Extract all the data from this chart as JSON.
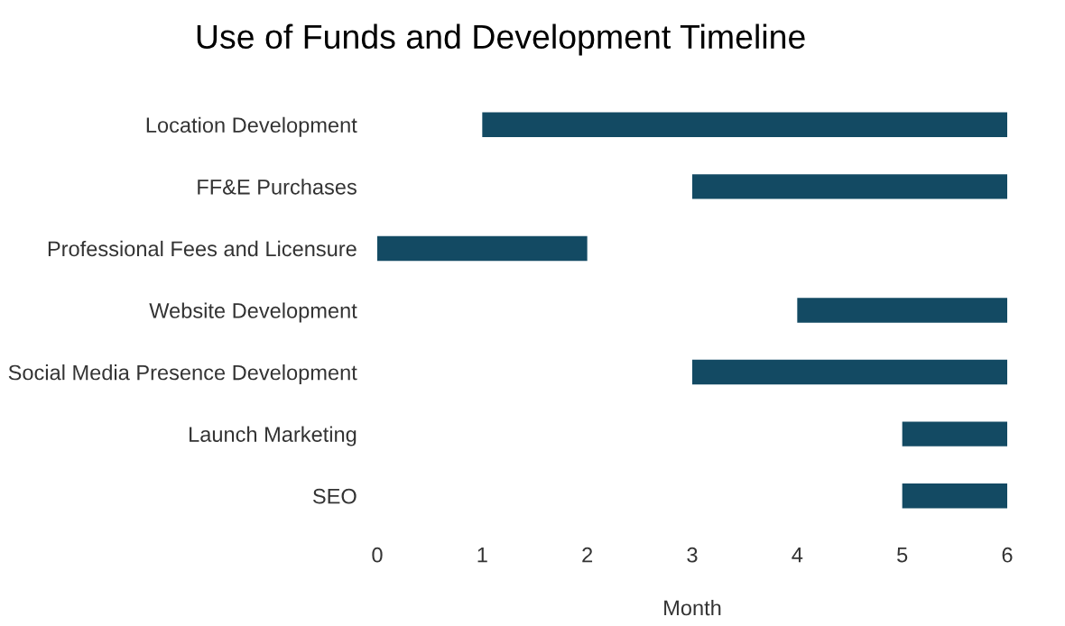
{
  "chart_data": {
    "type": "bar",
    "orientation": "horizontal",
    "title": "Use of Funds and Development Timeline",
    "xlabel": "Month",
    "categories": [
      "Location Development",
      "FF&E Purchases",
      "Professional Fees and Licensure",
      "Website Development",
      "Social Media Presence Development",
      "Launch Marketing",
      "SEO"
    ],
    "base": [
      1,
      3,
      0,
      4,
      3,
      5,
      5
    ],
    "values": [
      5,
      3,
      2,
      2,
      3,
      1,
      1
    ],
    "color": "#134a63",
    "xlim": [
      0,
      6
    ],
    "xticks": [
      0,
      1,
      2,
      3,
      4,
      5,
      6
    ],
    "grid": false,
    "legend": false
  }
}
